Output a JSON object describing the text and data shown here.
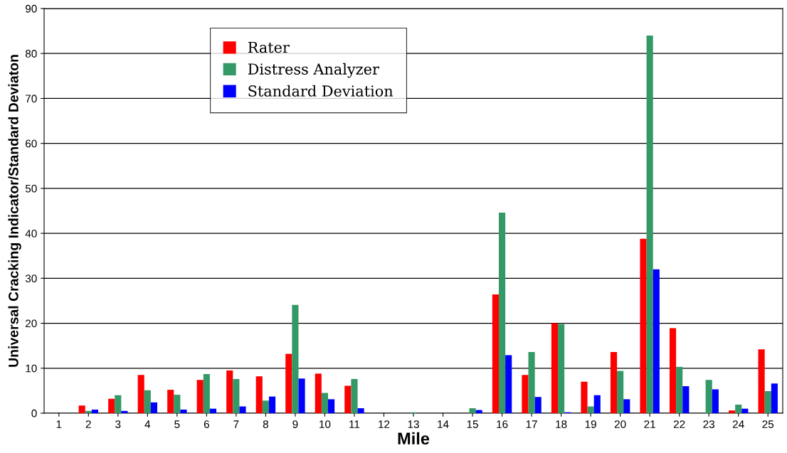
{
  "chart_data": {
    "type": "bar",
    "xlabel": "Mile",
    "ylabel": "Universal Cracking Indicator/Standard Deviaton",
    "categories": [
      "1",
      "2",
      "3",
      "4",
      "5",
      "6",
      "7",
      "8",
      "9",
      "10",
      "11",
      "12",
      "13",
      "14",
      "15",
      "16",
      "17",
      "18",
      "19",
      "20",
      "21",
      "22",
      "23",
      "24",
      "25"
    ],
    "series": [
      {
        "name": "Rater",
        "color": "#ff0000",
        "values": [
          0,
          1.7,
          3.2,
          8.5,
          5.2,
          7.4,
          9.5,
          8.2,
          13.2,
          8.8,
          6.1,
          0,
          0,
          0,
          0,
          26.4,
          8.5,
          20,
          7,
          13.6,
          38.8,
          18.9,
          0,
          0.6,
          14.2
        ]
      },
      {
        "name": "Distress Analyzer",
        "color": "#339966",
        "values": [
          0,
          0.5,
          4,
          5.1,
          4.1,
          8.7,
          7.6,
          2.8,
          24.1,
          4.5,
          7.6,
          0,
          0.2,
          0,
          1.1,
          44.6,
          13.6,
          19.8,
          1.5,
          9.4,
          84,
          10.3,
          7.4,
          1.9,
          4.9
        ]
      },
      {
        "name": "Standard Deviation",
        "color": "#0000ff",
        "values": [
          0,
          0.8,
          0.5,
          2.4,
          0.8,
          1.0,
          1.5,
          3.7,
          7.7,
          3.1,
          1.1,
          0,
          0,
          0,
          0.7,
          12.9,
          3.6,
          0.2,
          4,
          3.1,
          32,
          6,
          5.3,
          1,
          6.6
        ]
      }
    ],
    "ylim": [
      0,
      90
    ],
    "yticks": [
      0,
      10,
      20,
      30,
      40,
      50,
      60,
      70,
      80,
      90
    ],
    "grid": "y",
    "legend": "top left"
  }
}
